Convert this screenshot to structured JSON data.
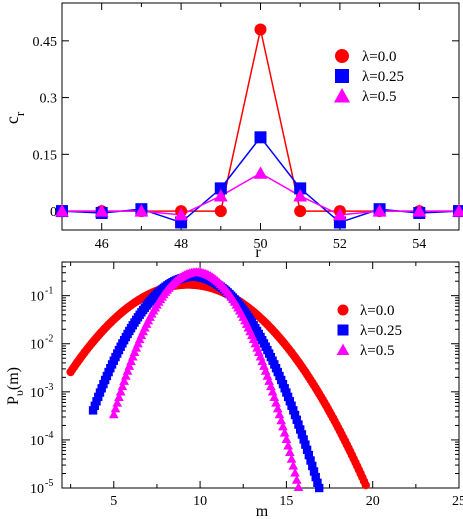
{
  "chart_data": [
    {
      "type": "line",
      "xlabel": "r",
      "ylabel": "c",
      "ylabel_sub": "r",
      "xlim": [
        45,
        55
      ],
      "ylim": [
        -0.05,
        0.55
      ],
      "xticks": [
        46,
        48,
        50,
        52,
        54
      ],
      "xtick_labels": [
        "46",
        "48",
        "50",
        "52",
        "54"
      ],
      "yticks": [
        0,
        0.15,
        0.3,
        0.45
      ],
      "ytick_labels": [
        "0",
        "0.15",
        "0.3",
        "0.45"
      ],
      "grid": false,
      "legend_position": "right",
      "series": [
        {
          "name": "λ=0.0",
          "color": "#ff0000",
          "marker": "circle",
          "x": [
            45,
            46,
            47,
            48,
            49,
            50,
            51,
            52,
            53,
            54,
            55
          ],
          "y": [
            0,
            0,
            0,
            0,
            0,
            0.48,
            0,
            0,
            0,
            0,
            0
          ]
        },
        {
          "name": "λ=0.25",
          "color": "#0000ff",
          "marker": "square",
          "x": [
            45,
            46,
            47,
            48,
            49,
            50,
            51,
            52,
            53,
            54,
            55
          ],
          "y": [
            0,
            -0.005,
            0.005,
            -0.03,
            0.06,
            0.195,
            0.06,
            -0.03,
            0.005,
            -0.005,
            0
          ]
        },
        {
          "name": "λ=0.5",
          "color": "#ff00ff",
          "marker": "triangle",
          "x": [
            45,
            46,
            47,
            48,
            49,
            50,
            51,
            52,
            53,
            54,
            55
          ],
          "y": [
            0,
            0,
            0,
            -0.01,
            0.04,
            0.1,
            0.04,
            -0.01,
            0,
            0,
            0
          ]
        }
      ]
    },
    {
      "type": "scatter",
      "xlabel": "m",
      "ylabel": "P",
      "ylabel_sub": "υ",
      "ylabel_suffix": "(m)",
      "xlim": [
        2,
        25
      ],
      "ylim_log10": [
        -5,
        -0.3
      ],
      "yscale": "log",
      "xticks": [
        5,
        10,
        15,
        20,
        25
      ],
      "xtick_labels": [
        "5",
        "10",
        "15",
        "20",
        "25"
      ],
      "yticks_exp": [
        -5,
        -4,
        -3,
        -2,
        -1
      ],
      "ytick_base": "10",
      "ytick_exps": [
        "-5",
        "-4",
        "-3",
        "-2",
        "-1"
      ],
      "grid": false,
      "legend_position": "right",
      "series": [
        {
          "name": "λ=0.0",
          "color": "#ff0000",
          "marker": "circle",
          "center": 9.3,
          "sigma": 2.35,
          "peak": 0.17,
          "xmin": 2.5,
          "xmax": 22.9
        },
        {
          "name": "λ=0.25",
          "color": "#0000ff",
          "marker": "square",
          "center": 9.6,
          "sigma": 1.62,
          "peak": 0.25,
          "xmin": 3.8,
          "xmax": 19.6
        },
        {
          "name": "λ=0.5",
          "color": "#ff00ff",
          "marker": "triangle",
          "center": 9.8,
          "sigma": 1.3,
          "peak": 0.31,
          "xmin": 5.0,
          "xmax": 17.3
        }
      ]
    }
  ]
}
